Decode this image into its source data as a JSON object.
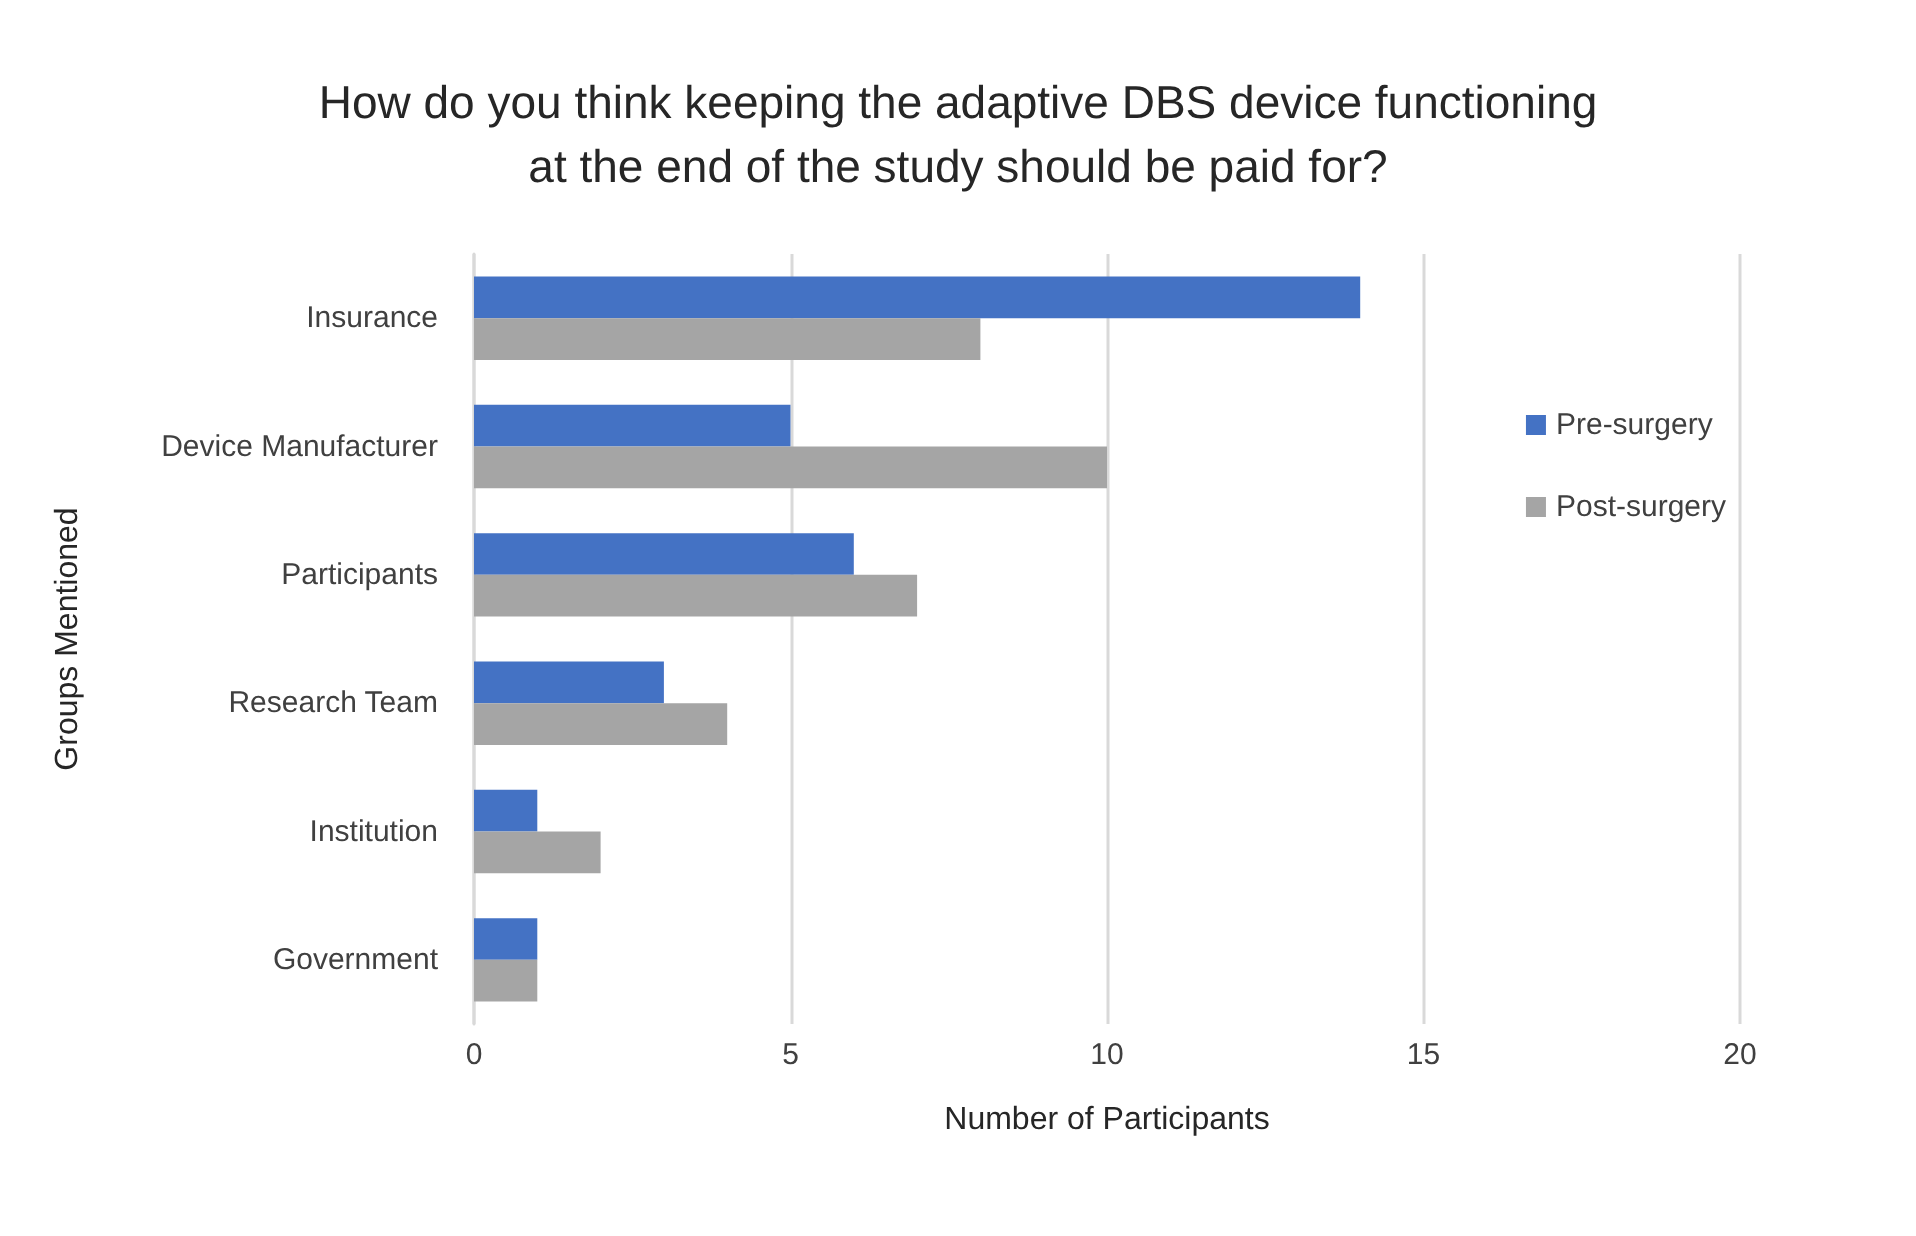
{
  "chart_data": {
    "type": "bar",
    "orientation": "horizontal",
    "title": "How do you think keeping the adaptive DBS device functioning\nat the end of the study should be paid for?",
    "xlabel": "Number of Participants",
    "ylabel": "Groups Mentioned",
    "categories": [
      "Insurance",
      "Device Manufacturer",
      "Participants",
      "Research Team",
      "Institution",
      "Government"
    ],
    "series": [
      {
        "name": "Pre-surgery",
        "color": "#4472c4",
        "values": [
          14,
          5,
          6,
          3,
          1,
          1
        ]
      },
      {
        "name": "Post-surgery",
        "color": "#a5a5a5",
        "values": [
          8,
          10,
          7,
          4,
          2,
          1
        ]
      }
    ],
    "xlim": [
      0,
      20
    ],
    "xticks": [
      0,
      5,
      10,
      15,
      20
    ],
    "grid": "x",
    "legend": "right"
  }
}
